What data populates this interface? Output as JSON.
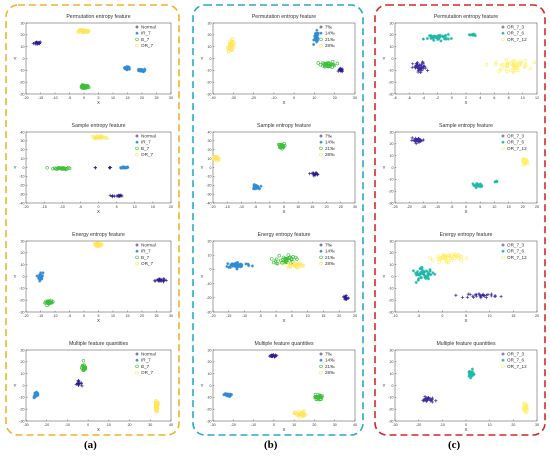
{
  "figure": {
    "panel_labels": [
      "(a)",
      "(b)",
      "(c)"
    ]
  },
  "colors": {
    "panel_borders": [
      "#f0b429",
      "#29a9c8",
      "#d62728"
    ],
    "classes": [
      "#2b1b8e",
      "#2f8bd6",
      "#3dbf3a",
      "#ffe65a"
    ],
    "classes_c": [
      "#3a2aa0",
      "#1fb8a8",
      "#ffef6a"
    ]
  },
  "chart_data": [
    {
      "type": "scatter",
      "panel": 0,
      "row": 0,
      "title": "Permutation entropy feature",
      "xlabel": "X",
      "ylabel": "Y",
      "xlim": [
        -20,
        30
      ],
      "ylim": [
        -30,
        30
      ],
      "xticks": [
        -20,
        -15,
        -10,
        -5,
        0,
        5,
        10,
        15,
        20,
        25,
        30
      ],
      "yticks": [
        -30,
        -20,
        -10,
        0,
        10,
        20,
        30
      ],
      "legend": [
        "Normal",
        "IR_7",
        "B_7",
        "OR_7"
      ],
      "clusters": [
        {
          "c": 0,
          "x": -16,
          "y": 13,
          "sx": 1.2,
          "sy": 1.2,
          "n": 18
        },
        {
          "c": 1,
          "x": 15,
          "y": -8,
          "sx": 1,
          "sy": 1,
          "n": 18
        },
        {
          "c": 1,
          "x": 20,
          "y": -10,
          "sx": 1,
          "sy": 1,
          "n": 18
        },
        {
          "c": 2,
          "x": 0,
          "y": -24,
          "sx": 1.3,
          "sy": 1.2,
          "n": 30
        },
        {
          "c": 3,
          "x": 0,
          "y": 23,
          "sx": 1.8,
          "sy": 1,
          "n": 28
        }
      ]
    },
    {
      "type": "scatter",
      "panel": 0,
      "row": 1,
      "title": "Sample entropy feature",
      "xlabel": "X",
      "ylabel": "Y",
      "xlim": [
        -20,
        20
      ],
      "ylim": [
        -40,
        40
      ],
      "xticks": [
        -20,
        -15,
        -10,
        -5,
        0,
        5,
        10,
        15,
        20
      ],
      "yticks": [
        -40,
        -30,
        -20,
        -10,
        0,
        10,
        20,
        30,
        40
      ],
      "legend": [
        "Normal",
        "IR_7",
        "B_7",
        "OR_7"
      ],
      "clusters": [
        {
          "c": 0,
          "x": 5,
          "y": -32,
          "sx": 1.3,
          "sy": 1,
          "n": 16
        },
        {
          "c": 0,
          "x": -1,
          "y": 0,
          "sx": 0.5,
          "sy": 0.5,
          "n": 3
        },
        {
          "c": 0,
          "x": 3,
          "y": 0,
          "sx": 0.5,
          "sy": 0.5,
          "n": 3
        },
        {
          "c": 1,
          "x": 7,
          "y": 0,
          "sx": 1.4,
          "sy": 0.9,
          "n": 16
        },
        {
          "c": 2,
          "x": -10,
          "y": -1,
          "sx": 2,
          "sy": 1,
          "n": 32
        },
        {
          "c": 3,
          "x": 0,
          "y": 34,
          "sx": 1.5,
          "sy": 1,
          "n": 25
        }
      ]
    },
    {
      "type": "scatter",
      "panel": 0,
      "row": 2,
      "title": "Energy entropy feature",
      "xlabel": "X",
      "ylabel": "Y",
      "xlim": [
        -20,
        30
      ],
      "ylim": [
        -30,
        30
      ],
      "xticks": [
        -20,
        -15,
        -10,
        -5,
        0,
        5,
        10,
        15,
        20,
        25,
        30
      ],
      "yticks": [
        -30,
        -20,
        -10,
        0,
        10,
        20,
        30
      ],
      "legend": [
        "Normal",
        "IR_7",
        "B_7",
        "OR_7"
      ],
      "clusters": [
        {
          "c": 0,
          "x": 26,
          "y": -3,
          "sx": 1.4,
          "sy": 1.5,
          "n": 22
        },
        {
          "c": 1,
          "x": -15,
          "y": 0,
          "sx": 0.7,
          "sy": 3,
          "n": 22
        },
        {
          "c": 2,
          "x": -12,
          "y": -22,
          "sx": 1.2,
          "sy": 1.2,
          "n": 28
        },
        {
          "c": 3,
          "x": 5,
          "y": 27,
          "sx": 1.2,
          "sy": 1,
          "n": 24
        }
      ]
    },
    {
      "type": "scatter",
      "panel": 0,
      "row": 3,
      "title": "Multiple feature quantities",
      "xlabel": "X",
      "ylabel": "Y",
      "xlim": [
        -30,
        40
      ],
      "ylim": [
        -30,
        30
      ],
      "xticks": [
        -30,
        -20,
        -10,
        0,
        10,
        20,
        30,
        40
      ],
      "yticks": [
        -30,
        -20,
        -10,
        0,
        10,
        20,
        30
      ],
      "legend": [
        "Normal",
        "IR_7",
        "B_7",
        "OR_7"
      ],
      "clusters": [
        {
          "c": 0,
          "x": -5,
          "y": 2,
          "sx": 1.5,
          "sy": 1.5,
          "n": 14
        },
        {
          "c": 1,
          "x": -25,
          "y": -8,
          "sx": 1,
          "sy": 2,
          "n": 26
        },
        {
          "c": 2,
          "x": -2,
          "y": 15,
          "sx": 0.9,
          "sy": 3,
          "n": 28
        },
        {
          "c": 3,
          "x": 33,
          "y": -18,
          "sx": 0.8,
          "sy": 4,
          "n": 30
        }
      ]
    },
    {
      "type": "scatter",
      "panel": 1,
      "row": 0,
      "title": "Permutation entropy feature",
      "xlabel": "X",
      "ylabel": "Y",
      "xlim": [
        -40,
        30
      ],
      "ylim": [
        -30,
        30
      ],
      "xticks": [
        -40,
        -30,
        -20,
        -10,
        0,
        10,
        20,
        30
      ],
      "yticks": [
        -30,
        -20,
        -10,
        0,
        10,
        20,
        30
      ],
      "legend": [
        "7‰",
        "14‰",
        "21‰",
        "28‰"
      ],
      "clusters": [
        {
          "c": 0,
          "x": 23,
          "y": -10,
          "sx": 0.8,
          "sy": 1.2,
          "n": 18
        },
        {
          "c": 1,
          "x": 11,
          "y": 18,
          "sx": 1,
          "sy": 4,
          "n": 32
        },
        {
          "c": 2,
          "x": 17,
          "y": -5,
          "sx": 3,
          "sy": 2,
          "n": 32
        },
        {
          "c": 3,
          "x": -31,
          "y": 11,
          "sx": 1.5,
          "sy": 4,
          "n": 32
        }
      ]
    },
    {
      "type": "scatter",
      "panel": 1,
      "row": 1,
      "title": "Sample entropy feature",
      "xlabel": "X",
      "ylabel": "Y",
      "xlim": [
        -20,
        30
      ],
      "ylim": [
        -40,
        40
      ],
      "xticks": [
        -20,
        -15,
        -10,
        -5,
        0,
        5,
        10,
        15,
        20,
        25,
        30
      ],
      "yticks": [
        -40,
        -30,
        -20,
        -10,
        0,
        10,
        20,
        30,
        40
      ],
      "legend": [
        "7‰",
        "14‰",
        "21‰",
        "28‰"
      ],
      "clusters": [
        {
          "c": 0,
          "x": 16,
          "y": -7,
          "sx": 1.4,
          "sy": 1,
          "n": 16
        },
        {
          "c": 1,
          "x": -5,
          "y": -22,
          "sx": 1,
          "sy": 2,
          "n": 28
        },
        {
          "c": 2,
          "x": 4,
          "y": 24,
          "sx": 0.9,
          "sy": 2.2,
          "n": 26
        },
        {
          "c": 3,
          "x": -19,
          "y": 10,
          "sx": 1,
          "sy": 2.2,
          "n": 26
        }
      ]
    },
    {
      "type": "scatter",
      "panel": 1,
      "row": 2,
      "title": "Energy entropy feature",
      "xlabel": "X",
      "ylabel": "Y",
      "xlim": [
        -20,
        25
      ],
      "ylim": [
        -30,
        20
      ],
      "xticks": [
        -20,
        -15,
        -10,
        -5,
        0,
        5,
        10,
        15,
        20,
        25
      ],
      "yticks": [
        -30,
        -20,
        -10,
        0,
        10,
        20
      ],
      "legend": [
        "7‰",
        "14‰",
        "21‰",
        "28‰"
      ],
      "clusters": [
        {
          "c": 0,
          "x": 22,
          "y": -20,
          "sx": 0.8,
          "sy": 2,
          "n": 18
        },
        {
          "c": 1,
          "x": -12,
          "y": 3,
          "sx": 3.5,
          "sy": 1.6,
          "n": 48
        },
        {
          "c": 2,
          "x": 3,
          "y": 7,
          "sx": 2.5,
          "sy": 3,
          "n": 38
        },
        {
          "c": 3,
          "x": 6,
          "y": 3,
          "sx": 2.5,
          "sy": 1.5,
          "n": 28
        }
      ]
    },
    {
      "type": "scatter",
      "panel": 1,
      "row": 3,
      "title": "Multiple feature quantities",
      "xlabel": "X",
      "ylabel": "Y",
      "xlim": [
        -30,
        40
      ],
      "ylim": [
        -30,
        30
      ],
      "xticks": [
        -30,
        -20,
        -10,
        0,
        10,
        20,
        30,
        40
      ],
      "yticks": [
        -30,
        -20,
        -10,
        0,
        10,
        20,
        30
      ],
      "legend": [
        "7‰",
        "14‰",
        "21‰",
        "28‰"
      ],
      "clusters": [
        {
          "c": 0,
          "x": -1,
          "y": 25,
          "sx": 2,
          "sy": 0.8,
          "n": 22
        },
        {
          "c": 1,
          "x": -23,
          "y": -8,
          "sx": 1.5,
          "sy": 1,
          "n": 26
        },
        {
          "c": 2,
          "x": 22,
          "y": -10,
          "sx": 1.5,
          "sy": 2,
          "n": 26
        },
        {
          "c": 3,
          "x": 13,
          "y": -24,
          "sx": 2.2,
          "sy": 2,
          "n": 30
        }
      ]
    },
    {
      "type": "scatter",
      "panel": 2,
      "row": 0,
      "title": "Permutation entropy feature",
      "xlabel": "X",
      "ylabel": "Y",
      "xlim": [
        -8,
        12
      ],
      "ylim": [
        -30,
        30
      ],
      "xticks": [
        -8,
        -6,
        -4,
        -2,
        0,
        2,
        4,
        6,
        8,
        10,
        12
      ],
      "yticks": [
        -30,
        -20,
        -10,
        0,
        10,
        20,
        30
      ],
      "legend": [
        "OR_7_3",
        "OR_7_6",
        "OR_7_12"
      ],
      "clusters": [
        {
          "c": 0,
          "x": -4.5,
          "y": -8,
          "sx": 0.8,
          "sy": 4,
          "n": 50
        },
        {
          "c": 1,
          "x": -2,
          "y": 18,
          "sx": 1.5,
          "sy": 2,
          "n": 36
        },
        {
          "c": 1,
          "x": 3,
          "y": 20,
          "sx": 0.5,
          "sy": 1,
          "n": 8
        },
        {
          "c": 2,
          "x": 8.5,
          "y": -6,
          "sx": 2,
          "sy": 4,
          "n": 50
        }
      ]
    },
    {
      "type": "scatter",
      "panel": 2,
      "row": 1,
      "title": "Sample entropy feature",
      "xlabel": "X",
      "ylabel": "Y",
      "xlim": [
        -25,
        25
      ],
      "ylim": [
        -30,
        30
      ],
      "xticks": [
        -25,
        -20,
        -15,
        -10,
        -5,
        0,
        5,
        10,
        15,
        20,
        25
      ],
      "yticks": [
        -30,
        -20,
        -10,
        0,
        10,
        20,
        30
      ],
      "legend": [
        "OR_7_3",
        "OR_7_6",
        "OR_7_12"
      ],
      "clusters": [
        {
          "c": 0,
          "x": -17,
          "y": 23,
          "sx": 2,
          "sy": 1.5,
          "n": 28
        },
        {
          "c": 1,
          "x": 4,
          "y": -15,
          "sx": 1.5,
          "sy": 1.3,
          "n": 20
        },
        {
          "c": 1,
          "x": 11,
          "y": -12,
          "sx": 0.6,
          "sy": 0.6,
          "n": 4
        },
        {
          "c": 2,
          "x": 21,
          "y": 5,
          "sx": 1,
          "sy": 1.8,
          "n": 26
        }
      ]
    },
    {
      "type": "scatter",
      "panel": 2,
      "row": 2,
      "title": "Energy entropy feature",
      "xlabel": "X",
      "ylabel": "Y",
      "xlim": [
        -10,
        20
      ],
      "ylim": [
        -30,
        30
      ],
      "xticks": [
        -10,
        -5,
        0,
        5,
        10,
        15,
        20
      ],
      "yticks": [
        -30,
        -20,
        -10,
        0,
        10,
        20,
        30
      ],
      "legend": [
        "OR_7_3",
        "OR_7_6",
        "OR_7_12"
      ],
      "clusters": [
        {
          "c": 0,
          "x": 8.5,
          "y": -16,
          "sx": 2.5,
          "sy": 1.5,
          "n": 30
        },
        {
          "c": 1,
          "x": -4,
          "y": 2,
          "sx": 2,
          "sy": 4,
          "n": 44
        },
        {
          "c": 2,
          "x": 1,
          "y": 16,
          "sx": 2.5,
          "sy": 3,
          "n": 44
        }
      ]
    },
    {
      "type": "scatter",
      "panel": 2,
      "row": 3,
      "title": "Multiple feature quantities",
      "xlabel": "X",
      "ylabel": "Y",
      "xlim": [
        -30,
        30
      ],
      "ylim": [
        -30,
        30
      ],
      "xticks": [
        -30,
        -20,
        -10,
        0,
        10,
        20,
        30
      ],
      "yticks": [
        -30,
        -20,
        -10,
        0,
        10,
        20,
        30
      ],
      "legend": [
        "OR_7_3",
        "OR_7_6",
        "OR_7_12"
      ],
      "clusters": [
        {
          "c": 0,
          "x": -16,
          "y": -12,
          "sx": 2,
          "sy": 2,
          "n": 26
        },
        {
          "c": 1,
          "x": 2,
          "y": 10,
          "sx": 1,
          "sy": 2.5,
          "n": 30
        },
        {
          "c": 2,
          "x": 25,
          "y": -19,
          "sx": 0.8,
          "sy": 2.5,
          "n": 28
        }
      ]
    }
  ]
}
